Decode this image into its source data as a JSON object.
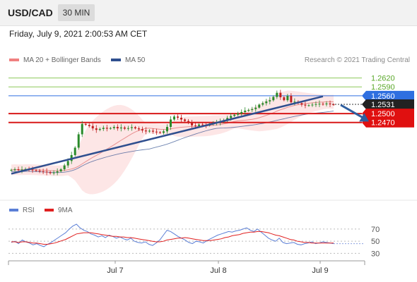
{
  "header": {
    "symbol": "USD/CAD",
    "timeframe": "30 MIN"
  },
  "timestamp": "Friday, July 9, 2021 2:00:53 AM CET",
  "legend": {
    "items": [
      {
        "label": "MA 20 + Bollinger Bands",
        "color": "#f08080"
      },
      {
        "label": "MA 50",
        "color": "#2f4f8f"
      }
    ],
    "credit": "Research © 2021 Trading Central"
  },
  "rsi_legend": {
    "items": [
      {
        "label": "RSI",
        "color": "#5b7fd6"
      },
      {
        "label": "9MA",
        "color": "#e02020"
      }
    ]
  },
  "colors": {
    "up": "#2a8a2a",
    "down": "#c02020",
    "bollinger": "#fde0e0",
    "ma20": "#e89090",
    "ma50": "#2f4f8f",
    "trendline": "#2f4f8f",
    "resistance": "#8dc85a",
    "pivot": "#2f6fe0",
    "support": "#d81818",
    "current": "#222222"
  },
  "chart_data": [
    {
      "type": "candlestick",
      "title": "",
      "ylim": [
        1.226,
        1.265
      ],
      "x_labels": [
        "Jul 7",
        "Jul 8",
        "Jul 9"
      ],
      "price_levels": [
        {
          "value": 1.262,
          "label": "1.2620",
          "kind": "resistance"
        },
        {
          "value": 1.259,
          "label": "1.2590",
          "kind": "resistance"
        },
        {
          "value": 1.256,
          "label": "1.2560",
          "kind": "pivot"
        },
        {
          "value": 1.2531,
          "label": "1.2531",
          "kind": "current"
        },
        {
          "value": 1.25,
          "label": "1.2500",
          "kind": "support"
        },
        {
          "value": 1.247,
          "label": "1.2470",
          "kind": "support"
        }
      ],
      "trendline": {
        "from": [
          0,
          1.2297
        ],
        "to": [
          88,
          1.2558
        ]
      },
      "forecast_arrow": {
        "from": [
          93,
          1.2529
        ],
        "to": [
          101,
          1.2473
        ]
      },
      "closes": [
        1.231,
        1.2312,
        1.2309,
        1.2311,
        1.2313,
        1.2311,
        1.2309,
        1.2307,
        1.2305,
        1.2304,
        1.2302,
        1.2299,
        1.2301,
        1.2305,
        1.2312,
        1.2325,
        1.234,
        1.236,
        1.2385,
        1.243,
        1.2465,
        1.2462,
        1.2458,
        1.245,
        1.2445,
        1.2448,
        1.2452,
        1.2449,
        1.2451,
        1.2455,
        1.245,
        1.2453,
        1.2449,
        1.2451,
        1.2454,
        1.245,
        1.2447,
        1.2443,
        1.244,
        1.2442,
        1.2439,
        1.2437,
        1.2435,
        1.244,
        1.2455,
        1.248,
        1.249,
        1.2486,
        1.248,
        1.2475,
        1.247,
        1.246,
        1.2458,
        1.2463,
        1.2461,
        1.246,
        1.2465,
        1.2468,
        1.247,
        1.2472,
        1.2478,
        1.2485,
        1.2492,
        1.2496,
        1.25,
        1.2505,
        1.251,
        1.2512,
        1.2515,
        1.252,
        1.253,
        1.2535,
        1.2541,
        1.2545,
        1.2556,
        1.257,
        1.2555,
        1.2545,
        1.256,
        1.2538,
        1.254,
        1.2535,
        1.253,
        1.2527,
        1.2528,
        1.253,
        1.2532,
        1.2533,
        1.2531,
        1.2534,
        1.2531,
        1.253
      ],
      "indicators": [
        "MA 20 + Bollinger Bands",
        "MA 50"
      ]
    },
    {
      "type": "line",
      "title": "RSI",
      "ylim": [
        20,
        85
      ],
      "y_ticks": [
        "70",
        "50",
        "30"
      ],
      "series": [
        {
          "name": "RSI",
          "values": [
            48,
            50,
            46,
            52,
            49,
            47,
            44,
            46,
            43,
            41,
            45,
            48,
            52,
            56,
            60,
            64,
            70,
            75,
            78,
            72,
            68,
            66,
            62,
            60,
            57,
            59,
            56,
            60,
            58,
            55,
            57,
            54,
            52,
            55,
            50,
            48,
            47,
            49,
            45,
            43,
            47,
            52,
            60,
            68,
            66,
            62,
            58,
            55,
            52,
            48,
            46,
            50,
            49,
            47,
            51,
            54,
            57,
            60,
            62,
            64,
            66,
            65,
            67,
            68,
            70,
            72,
            68,
            66,
            70,
            65,
            60,
            55,
            52,
            50,
            55,
            48,
            46,
            47,
            48,
            45,
            44,
            46,
            47,
            49,
            46,
            47,
            49,
            48,
            47,
            46
          ]
        },
        {
          "name": "9MA",
          "values": [
            49,
            49,
            48,
            49,
            49,
            48,
            47,
            47,
            46,
            45,
            45,
            46,
            47,
            49,
            51,
            53,
            56,
            59,
            62,
            63,
            64,
            64,
            64,
            63,
            62,
            61,
            60,
            59,
            58,
            58,
            57,
            57,
            56,
            56,
            55,
            54,
            53,
            52,
            51,
            50,
            49,
            49,
            50,
            52,
            53,
            54,
            55,
            55,
            56,
            55,
            54,
            53,
            52,
            51,
            51,
            51,
            52,
            53,
            54,
            56,
            57,
            59,
            60,
            61,
            63,
            64,
            65,
            65,
            66,
            66,
            65,
            64,
            62,
            60,
            59,
            57,
            55,
            53,
            52,
            50,
            49,
            48,
            48,
            47,
            47,
            47,
            47,
            47,
            47,
            47
          ]
        }
      ]
    }
  ]
}
